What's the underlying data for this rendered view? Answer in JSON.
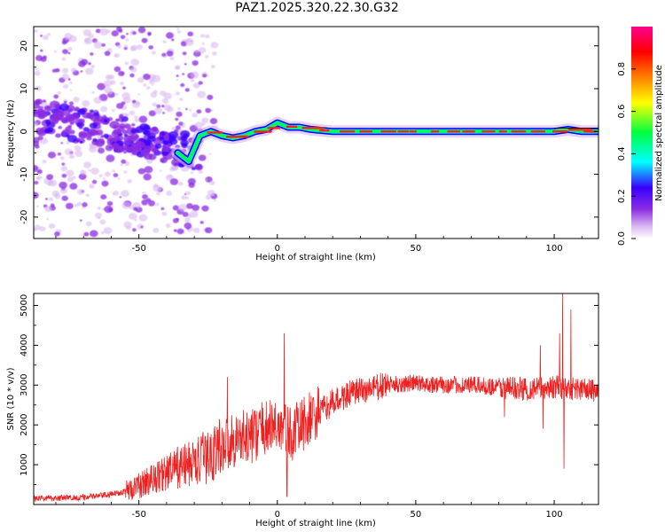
{
  "title": "PAZ1.2025.320.22.30.G32",
  "chart_data": [
    {
      "type": "heatmap",
      "xlabel": "Height of straight line (km)",
      "ylabel": "Frequency (Hz)",
      "xlim": [
        -88,
        116
      ],
      "ylim": [
        -25,
        24.5
      ],
      "x_ticks": [
        -50,
        0,
        50,
        100
      ],
      "x_tick_labels": [
        "-50",
        "0",
        "50",
        "100"
      ],
      "y_ticks": [
        -20,
        -10,
        0,
        10,
        20
      ],
      "y_tick_labels": [
        "-20",
        "-10",
        "0",
        "10",
        "20"
      ],
      "description_points": {
        "ridge_x": [
          -36,
          -32,
          -28,
          -24,
          -20,
          -16,
          -12,
          -8,
          -4,
          0,
          4,
          8,
          12,
          20,
          30,
          40,
          50,
          60,
          70,
          80,
          90,
          100,
          105,
          110,
          116
        ],
        "ridge_y": [
          -5,
          -7,
          -1,
          0,
          -1,
          -1.5,
          -1,
          0,
          0.5,
          2,
          1,
          1,
          0.5,
          0,
          0,
          0,
          0,
          0,
          0,
          0,
          0,
          0,
          0.5,
          0,
          0
        ]
      },
      "colorbar": {
        "label": "Normalized spectral amplitude",
        "range": [
          0,
          1
        ],
        "ticks": [
          0,
          0.2,
          0.4,
          0.6,
          0.8
        ],
        "tick_labels": [
          "0.0",
          "0.2",
          "0.4",
          "0.6",
          "0.8"
        ],
        "colormap": [
          "#ffffff",
          "#d7b4f0",
          "#8a2be2",
          "#3a00ff",
          "#00ffff",
          "#00ff40",
          "#ffff00",
          "#ff8000",
          "#ff0000",
          "#ff0090"
        ]
      },
      "colors": {
        "scatter": "#8a2be2",
        "ridge_outer": "#0000ff",
        "ridge_mid": "#00e0e0",
        "ridge_core": "#ff2020"
      }
    },
    {
      "type": "line",
      "xlabel": "Height of straight line (km)",
      "ylabel": "SNR (10 * v/v)",
      "xlim": [
        -88,
        116
      ],
      "ylim": [
        0,
        5300
      ],
      "x_ticks": [
        -50,
        0,
        50,
        100
      ],
      "x_tick_labels": [
        "-50",
        "0",
        "50",
        "100"
      ],
      "y_ticks": [
        1000,
        2000,
        3000,
        4000,
        5000
      ],
      "y_tick_labels": [
        "1000",
        "2000",
        "3000",
        "4000",
        "5000"
      ],
      "color": "#ee2020",
      "trend": {
        "x": [
          -88,
          -70,
          -60,
          -52,
          -45,
          -40,
          -35,
          -30,
          -25,
          -20,
          -15,
          -10,
          -5,
          0,
          5,
          10,
          15,
          20,
          25,
          30,
          40,
          50,
          60,
          70,
          80,
          90,
          100,
          110,
          116
        ],
        "y": [
          150,
          180,
          250,
          400,
          650,
          800,
          950,
          1050,
          1200,
          1500,
          1650,
          1700,
          1900,
          2000,
          1750,
          2050,
          2300,
          2550,
          2750,
          2850,
          3000,
          3050,
          3000,
          3000,
          2950,
          2900,
          2950,
          2900,
          2850
        ]
      },
      "spikes": [
        {
          "x": -18,
          "y": 3200
        },
        {
          "x": 2.5,
          "y": 4300
        },
        {
          "x": 3.5,
          "y": 200
        },
        {
          "x": 82,
          "y": 2200
        },
        {
          "x": 95,
          "y": 4000
        },
        {
          "x": 96,
          "y": 1900
        },
        {
          "x": 102,
          "y": 4300
        },
        {
          "x": 103,
          "y": 5300
        },
        {
          "x": 103.5,
          "y": 900
        },
        {
          "x": 106,
          "y": 4900
        }
      ]
    }
  ]
}
